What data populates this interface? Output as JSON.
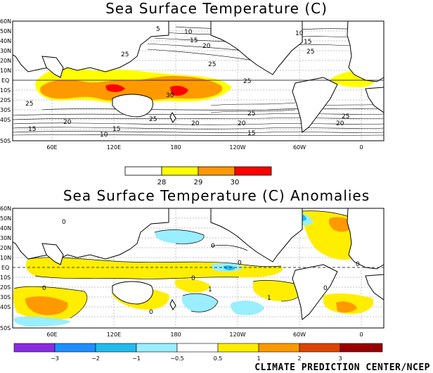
{
  "panel_top": {
    "title": "Sea Surface Temperature (C)",
    "lat_labels": [
      "60N",
      "50N",
      "40N",
      "30N",
      "20N",
      "10N",
      "EQ",
      "10S",
      "20S",
      "30S",
      "40S",
      "50S"
    ],
    "lon_labels": [
      "60E",
      "120E",
      "180",
      "120W",
      "60W",
      "0"
    ],
    "contour_labels": [
      "5",
      "10",
      "15",
      "20",
      "25",
      "25",
      "25",
      "30",
      "25",
      "20",
      "25",
      "20",
      "15",
      "10",
      "15",
      "25",
      "15",
      "20",
      "10",
      "15",
      "20",
      "25",
      "25"
    ],
    "colorbar": {
      "ticks": [
        "28",
        "29",
        "30"
      ],
      "colors": [
        "#ffffff",
        "#ffff00",
        "#ff9900",
        "#ff0000"
      ]
    }
  },
  "panel_bottom": {
    "title": "Sea Surface Temperature (C) Anomalies",
    "lat_labels": [
      "60N",
      "50N",
      "40N",
      "30N",
      "20N",
      "10N",
      "EQ",
      "10S",
      "20S",
      "30S",
      "40S",
      "50S"
    ],
    "lon_labels": [
      "60E",
      "120E",
      "180",
      "120W",
      "60W",
      "0"
    ],
    "contour_labels": [
      "0",
      "0",
      "0",
      "0",
      "1",
      "0",
      "0",
      "0",
      "1",
      "0"
    ],
    "colorbar": {
      "ticks": [
        "−3",
        "−2",
        "−1",
        "−0.5",
        "0.5",
        "1",
        "2",
        "3"
      ],
      "colors": [
        "#8a2be2",
        "#1e90ff",
        "#22bbee",
        "#99eeff",
        "#ffffff",
        "#ffee00",
        "#ff9900",
        "#dd4400",
        "#990000"
      ]
    }
  },
  "credit": "CLIMATE PREDICTION CENTER/NCEP"
}
